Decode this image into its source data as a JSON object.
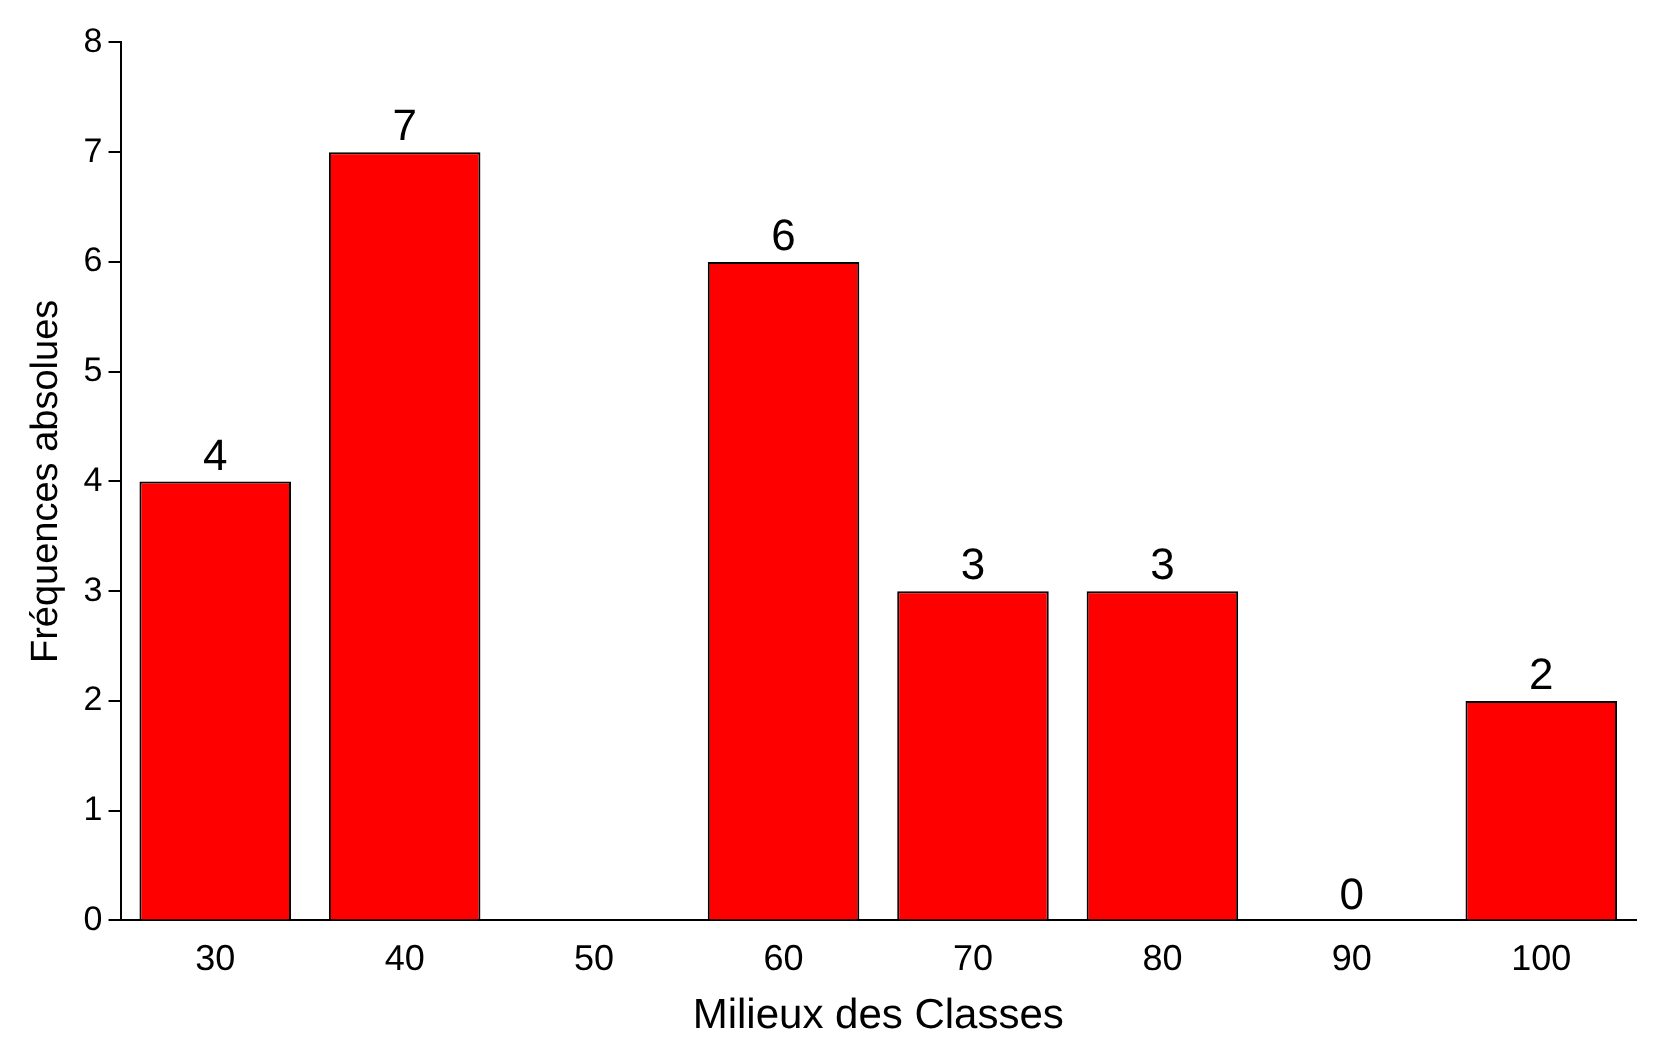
{
  "chart_data": {
    "type": "bar",
    "xlabel": "Milieux des Classes",
    "ylabel": "Fréquences absolues",
    "x": [
      30,
      40,
      60,
      70,
      80,
      90,
      100
    ],
    "values": [
      4,
      7,
      6,
      3,
      3,
      0,
      2
    ],
    "color": "#ff0000",
    "xlim": [
      25,
      105
    ],
    "xticks": [
      30,
      40,
      50,
      60,
      70,
      80,
      90,
      100
    ],
    "ylim": [
      0,
      8
    ],
    "yticks": [
      0,
      1,
      2,
      3,
      4,
      5,
      6,
      7,
      8
    ],
    "data_labels": true,
    "grid": false,
    "legend": false
  }
}
